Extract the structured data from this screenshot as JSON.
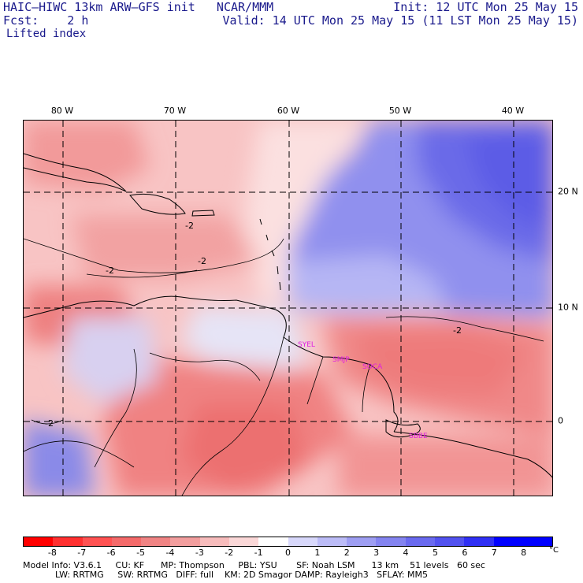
{
  "header": {
    "title": "HAIC–HIWC 13km ARW–GFS init   NCAR/MMM",
    "fcst": "Fcst:    2 h",
    "init": "Init: 12 UTC Mon 25 May 15",
    "valid": "Valid: 14 UTC Mon 25 May 15 (11 LST Mon 25 May 15)",
    "field": "Lifted index"
  },
  "map": {
    "lon_labels": [
      "80 W",
      "70 W",
      "60 W",
      "50 W",
      "40 W"
    ],
    "lat_labels": [
      "20 N",
      "10 N",
      "0"
    ],
    "contour_labels": [
      "-2",
      "-2",
      "-2",
      "-2",
      "-2"
    ],
    "stations": [
      "SYEL",
      "SMJP",
      "SOCA",
      "SBBE"
    ],
    "colors": {
      "land_outline": "#000000",
      "gridline": "#000000",
      "station": "#e020e0"
    }
  },
  "colorbar": {
    "ticks": [
      "-8",
      "-7",
      "-6",
      "-5",
      "-4",
      "-3",
      "-2",
      "-1",
      "0",
      "1",
      "2",
      "3",
      "4",
      "5",
      "6",
      "7",
      "8"
    ],
    "unit": "°C",
    "colors": [
      "#ff0000",
      "#ff3030",
      "#ff5252",
      "#f46a6a",
      "#f08484",
      "#f29e9e",
      "#f7bcbc",
      "#fbd8d8",
      "#ffffff",
      "#d8d8fb",
      "#bcbcf7",
      "#9e9ef2",
      "#8484f0",
      "#6a6aef",
      "#5252ef",
      "#3030f4",
      "#0000ff"
    ]
  },
  "footer": {
    "line1": "Model Info: V3.6.1     CU: KF      MP: Thompson     PBL: YSU       SF: Noah LSM      13 km    51 levels   60 sec",
    "line2": "LW: RRTMG     SW: RRTMG   DIFF: full    KM: 2D Smagor DAMP: Rayleigh3   SFLAY: MM5"
  }
}
